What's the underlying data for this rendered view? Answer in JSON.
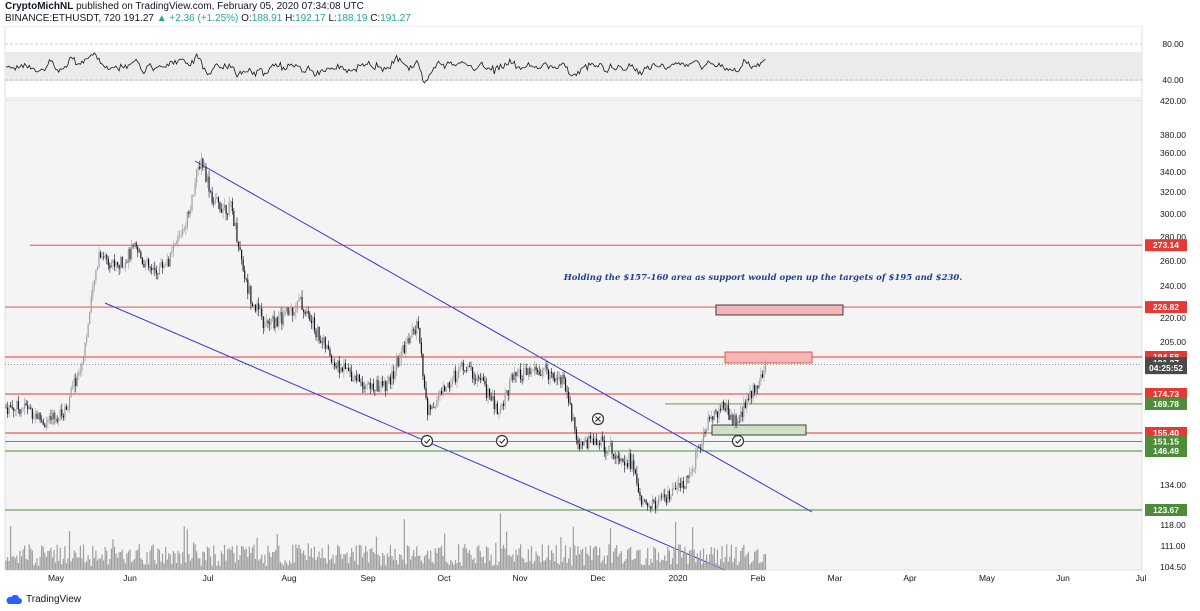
{
  "header": {
    "author": "CryptoMichNL",
    "published": "published on TradingView.com, February 05, 2020 07:34:08 UTC",
    "symbol": "BINANCE:ETHUSDT, 720",
    "price": "191.27",
    "change": "▲ +2.36 (+1.25%)",
    "o_label": "O:",
    "o_val": "188.91",
    "h_label": "H:",
    "h_val": "192.17",
    "l_label": "L:",
    "l_val": "188.19",
    "c_label": "C:",
    "c_val": "191.27"
  },
  "footer": {
    "brand": "TradingView"
  },
  "colors": {
    "red_level": "#e53935",
    "green_level": "#4e8c3a",
    "trendline": "#3a3ad0",
    "zone_red": "#f4b6b6",
    "zone_green": "#cfe0c4",
    "up_bar": "#9e9e9e",
    "down_bar": "#131722",
    "chart_bg": "#f4f4f4"
  },
  "chart_data": {
    "type": "candlestick",
    "indicator": {
      "type": "line",
      "levels": [
        {
          "value": 80,
          "label": "80.00"
        },
        {
          "value": 40,
          "label": "40.00"
        }
      ],
      "ylim": [
        20,
        100
      ]
    },
    "y_ticks": [
      "420.00",
      "380.00",
      "360.00",
      "340.00",
      "320.00",
      "300.00",
      "280.00",
      "260.00",
      "240.00",
      "220.00",
      "205.00",
      "134.00",
      "118.00",
      "111.00",
      "104.50"
    ],
    "y_tick_values": [
      420,
      380,
      360,
      340,
      320,
      300,
      280,
      260,
      240,
      220,
      205,
      134,
      118,
      111,
      104.5
    ],
    "ylim": [
      103,
      430
    ],
    "x_ticks": [
      "May",
      "Jun",
      "Jul",
      "Aug",
      "Sep",
      "Oct",
      "Nov",
      "Dec",
      "2020",
      "Feb",
      "Mar",
      "Apr",
      "May",
      "Jun",
      "Jul"
    ],
    "price_labels": [
      {
        "value": 273.14,
        "text": "273.14",
        "color": "#e53935"
      },
      {
        "value": 226.82,
        "text": "226.82",
        "color": "#e53935"
      },
      {
        "value": 194.58,
        "text": "194.58",
        "color": "#e53935"
      },
      {
        "value": 191.27,
        "text": "191.27",
        "color": "#4a4a4a"
      },
      {
        "value": 188.6,
        "text": "04:25:52",
        "color": "#4a4a4a"
      },
      {
        "value": 174.73,
        "text": "174.73",
        "color": "#e53935"
      },
      {
        "value": 169.78,
        "text": "169.78",
        "color": "#4e8c3a"
      },
      {
        "value": 155.4,
        "text": "155.40",
        "color": "#e53935"
      },
      {
        "value": 151.15,
        "text": "151.15",
        "color": "#4e8c3a"
      },
      {
        "value": 146.49,
        "text": "146.49",
        "color": "#4e8c3a"
      },
      {
        "value": 123.67,
        "text": "123.67",
        "color": "#4e8c3a"
      }
    ],
    "red_levels": [
      273.14,
      226.82,
      194.58,
      174.73,
      155.4
    ],
    "green_levels": [
      169.78,
      151.15,
      146.49,
      123.67
    ],
    "annotation": "Holding the $157-160 area as support would open up the targets of $195 and $230.",
    "series_path": [
      {
        "d": "2019-04-20",
        "v": 168
      },
      {
        "d": "2019-04-27",
        "v": 160
      },
      {
        "d": "2019-05-04",
        "v": 165
      },
      {
        "d": "2019-05-11",
        "v": 190
      },
      {
        "d": "2019-05-15",
        "v": 230
      },
      {
        "d": "2019-05-18",
        "v": 268
      },
      {
        "d": "2019-05-25",
        "v": 255
      },
      {
        "d": "2019-06-01",
        "v": 270
      },
      {
        "d": "2019-06-08",
        "v": 250
      },
      {
        "d": "2019-06-15",
        "v": 262
      },
      {
        "d": "2019-06-22",
        "v": 300
      },
      {
        "d": "2019-06-27",
        "v": 355
      },
      {
        "d": "2019-07-02",
        "v": 310
      },
      {
        "d": "2019-07-09",
        "v": 305
      },
      {
        "d": "2019-07-15",
        "v": 240
      },
      {
        "d": "2019-07-22",
        "v": 215
      },
      {
        "d": "2019-07-29",
        "v": 220
      },
      {
        "d": "2019-08-05",
        "v": 230
      },
      {
        "d": "2019-08-12",
        "v": 210
      },
      {
        "d": "2019-08-19",
        "v": 190
      },
      {
        "d": "2019-08-26",
        "v": 185
      },
      {
        "d": "2019-09-02",
        "v": 178
      },
      {
        "d": "2019-09-09",
        "v": 180
      },
      {
        "d": "2019-09-16",
        "v": 205
      },
      {
        "d": "2019-09-20",
        "v": 215
      },
      {
        "d": "2019-09-24",
        "v": 165
      },
      {
        "d": "2019-10-01",
        "v": 178
      },
      {
        "d": "2019-10-08",
        "v": 190
      },
      {
        "d": "2019-10-15",
        "v": 182
      },
      {
        "d": "2019-10-22",
        "v": 165
      },
      {
        "d": "2019-10-27",
        "v": 182
      },
      {
        "d": "2019-11-03",
        "v": 186
      },
      {
        "d": "2019-11-10",
        "v": 187
      },
      {
        "d": "2019-11-17",
        "v": 182
      },
      {
        "d": "2019-11-22",
        "v": 150
      },
      {
        "d": "2019-11-29",
        "v": 152
      },
      {
        "d": "2019-12-06",
        "v": 147
      },
      {
        "d": "2019-12-13",
        "v": 143
      },
      {
        "d": "2019-12-18",
        "v": 125
      },
      {
        "d": "2019-12-25",
        "v": 127
      },
      {
        "d": "2020-01-01",
        "v": 132
      },
      {
        "d": "2020-01-07",
        "v": 142
      },
      {
        "d": "2020-01-14",
        "v": 165
      },
      {
        "d": "2020-01-19",
        "v": 168
      },
      {
        "d": "2020-01-24",
        "v": 160
      },
      {
        "d": "2020-01-29",
        "v": 175
      },
      {
        "d": "2020-02-05",
        "v": 191
      }
    ]
  }
}
